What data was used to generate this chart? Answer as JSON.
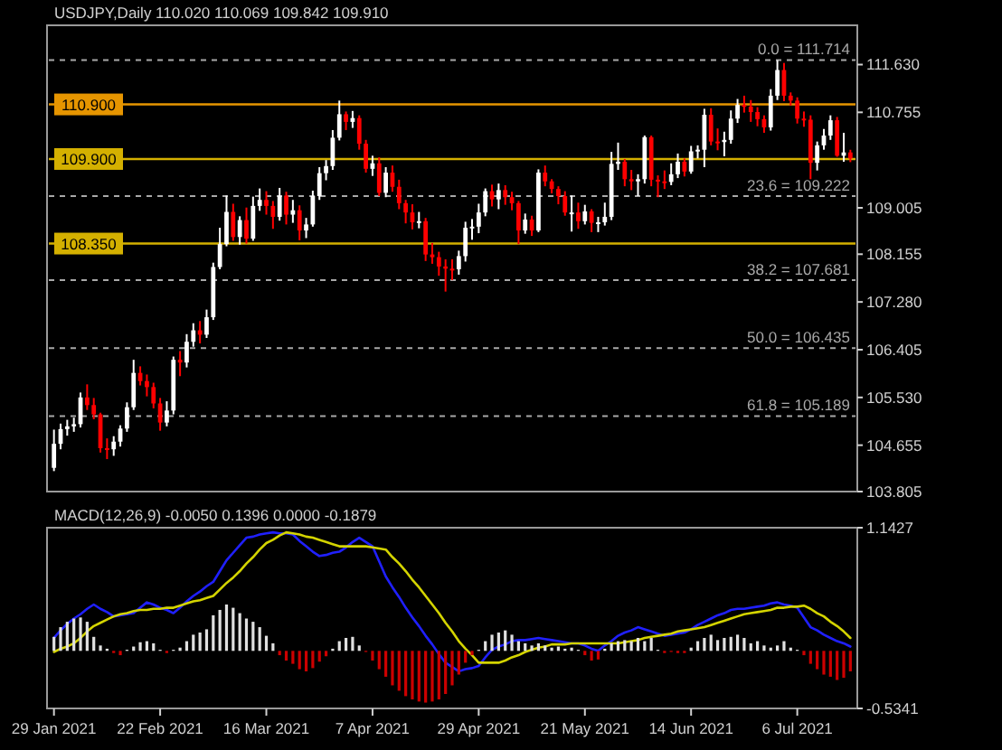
{
  "chart_data": [
    {
      "type": "candlestick",
      "title": "USDJPY,Daily 110.020 110.069 109.842 109.910",
      "tick_labels": "y",
      "ohlc": [
        [
          104.24,
          104.94,
          104.18,
          104.68
        ],
        [
          104.68,
          105.05,
          104.58,
          104.95
        ],
        [
          104.95,
          105.12,
          104.83,
          105.0
        ],
        [
          105.0,
          105.16,
          104.9,
          105.04
        ],
        [
          105.04,
          105.62,
          104.98,
          105.53
        ],
        [
          105.53,
          105.77,
          105.3,
          105.39
        ],
        [
          105.39,
          105.52,
          105.13,
          105.22
        ],
        [
          105.22,
          105.25,
          104.52,
          104.6
        ],
        [
          104.6,
          104.78,
          104.4,
          104.58
        ],
        [
          104.58,
          104.82,
          104.46,
          104.72
        ],
        [
          104.72,
          105.02,
          104.63,
          104.96
        ],
        [
          104.96,
          105.44,
          104.9,
          105.35
        ],
        [
          105.35,
          106.22,
          105.3,
          105.98
        ],
        [
          105.98,
          106.1,
          105.75,
          105.83
        ],
        [
          105.83,
          105.95,
          105.55,
          105.72
        ],
        [
          105.72,
          105.8,
          105.33,
          105.42
        ],
        [
          105.42,
          105.52,
          104.92,
          105.07
        ],
        [
          105.07,
          105.46,
          105.0,
          105.29
        ],
        [
          105.29,
          106.28,
          105.22,
          106.22
        ],
        [
          106.22,
          106.38,
          105.92,
          106.17
        ],
        [
          106.17,
          106.69,
          106.08,
          106.55
        ],
        [
          106.55,
          106.89,
          106.46,
          106.76
        ],
        [
          106.76,
          106.93,
          106.52,
          106.68
        ],
        [
          106.68,
          107.14,
          106.62,
          107.0
        ],
        [
          107.0,
          108.0,
          106.95,
          107.92
        ],
        [
          107.92,
          108.64,
          107.88,
          108.34
        ],
        [
          108.34,
          109.23,
          108.3,
          108.93
        ],
        [
          108.93,
          109.08,
          108.4,
          108.47
        ],
        [
          108.47,
          108.85,
          108.33,
          108.78
        ],
        [
          108.78,
          109.01,
          108.35,
          108.44
        ],
        [
          108.44,
          109.21,
          108.4,
          109.04
        ],
        [
          109.04,
          109.36,
          108.95,
          109.15
        ],
        [
          109.15,
          109.31,
          108.88,
          109.04
        ],
        [
          109.04,
          109.13,
          108.62,
          108.84
        ],
        [
          108.84,
          109.37,
          108.77,
          109.23
        ],
        [
          109.23,
          109.3,
          108.7,
          108.88
        ],
        [
          108.88,
          109.15,
          108.73,
          108.96
        ],
        [
          108.96,
          109.05,
          108.41,
          108.59
        ],
        [
          108.59,
          108.82,
          108.45,
          108.7
        ],
        [
          108.7,
          109.32,
          108.66,
          109.22
        ],
        [
          109.22,
          109.75,
          109.15,
          109.64
        ],
        [
          109.64,
          109.88,
          109.51,
          109.77
        ],
        [
          109.77,
          110.43,
          109.7,
          110.29
        ],
        [
          110.29,
          110.97,
          110.24,
          110.72
        ],
        [
          110.72,
          110.77,
          110.43,
          110.58
        ],
        [
          110.58,
          110.78,
          110.47,
          110.65
        ],
        [
          110.65,
          110.7,
          110.07,
          110.18
        ],
        [
          110.18,
          110.25,
          109.65,
          109.72
        ],
        [
          109.72,
          109.96,
          109.59,
          109.82
        ],
        [
          109.82,
          109.93,
          109.22,
          109.28
        ],
        [
          109.28,
          109.75,
          109.2,
          109.65
        ],
        [
          109.65,
          109.78,
          109.3,
          109.39
        ],
        [
          109.39,
          109.52,
          108.98,
          109.09
        ],
        [
          109.09,
          109.15,
          108.72,
          108.92
        ],
        [
          108.92,
          109.07,
          108.61,
          108.74
        ],
        [
          108.74,
          108.93,
          108.63,
          108.76
        ],
        [
          108.76,
          108.82,
          108.03,
          108.15
        ],
        [
          108.15,
          108.36,
          107.98,
          108.1
        ],
        [
          108.1,
          108.2,
          107.76,
          107.93
        ],
        [
          107.93,
          108.06,
          107.47,
          107.89
        ],
        [
          107.89,
          108.06,
          107.68,
          107.88
        ],
        [
          107.88,
          108.22,
          107.78,
          108.12
        ],
        [
          108.12,
          108.75,
          108.02,
          108.64
        ],
        [
          108.64,
          108.8,
          108.42,
          108.66
        ],
        [
          108.66,
          109.08,
          108.54,
          108.92
        ],
        [
          108.92,
          109.36,
          108.85,
          109.31
        ],
        [
          109.31,
          109.43,
          109.03,
          109.16
        ],
        [
          109.16,
          109.45,
          108.98,
          109.33
        ],
        [
          109.33,
          109.42,
          109.06,
          109.2
        ],
        [
          109.2,
          109.3,
          108.96,
          109.09
        ],
        [
          109.09,
          109.13,
          108.34,
          108.59
        ],
        [
          108.59,
          108.9,
          108.53,
          108.79
        ],
        [
          108.79,
          108.86,
          108.49,
          108.59
        ],
        [
          108.59,
          109.71,
          108.56,
          109.65
        ],
        [
          109.65,
          109.78,
          109.4,
          109.49
        ],
        [
          109.49,
          109.53,
          109.27,
          109.35
        ],
        [
          109.35,
          109.4,
          109.07,
          109.22
        ],
        [
          109.22,
          109.31,
          108.86,
          108.92
        ],
        [
          108.92,
          109.23,
          108.57,
          108.92
        ],
        [
          108.92,
          109.1,
          108.62,
          108.76
        ],
        [
          108.76,
          109.06,
          108.7,
          108.94
        ],
        [
          108.94,
          108.98,
          108.56,
          108.73
        ],
        [
          108.73,
          108.84,
          108.56,
          108.74
        ],
        [
          108.74,
          109.1,
          108.68,
          108.84
        ],
        [
          108.84,
          110.03,
          108.78,
          109.81
        ],
        [
          109.81,
          110.2,
          109.7,
          109.85
        ],
        [
          109.85,
          109.9,
          109.4,
          109.53
        ],
        [
          109.53,
          109.7,
          109.33,
          109.49
        ],
        [
          109.49,
          109.62,
          109.22,
          109.53
        ],
        [
          109.53,
          110.33,
          109.45,
          110.3
        ],
        [
          110.3,
          110.33,
          109.4,
          109.52
        ],
        [
          109.52,
          109.6,
          109.2,
          109.49
        ],
        [
          109.49,
          109.69,
          109.35,
          109.48
        ],
        [
          109.48,
          109.82,
          109.42,
          109.62
        ],
        [
          109.62,
          110.0,
          109.55,
          109.85
        ],
        [
          109.85,
          109.91,
          109.58,
          109.67
        ],
        [
          109.67,
          110.14,
          109.63,
          110.04
        ],
        [
          110.04,
          110.15,
          109.91,
          110.07
        ],
        [
          110.07,
          110.82,
          109.75,
          110.71
        ],
        [
          110.71,
          110.83,
          110.15,
          110.22
        ],
        [
          110.22,
          110.46,
          110.06,
          110.21
        ],
        [
          110.21,
          110.4,
          109.95,
          110.25
        ],
        [
          110.25,
          110.79,
          110.18,
          110.64
        ],
        [
          110.64,
          111.0,
          110.56,
          110.89
        ],
        [
          110.89,
          111.06,
          110.75,
          110.86
        ],
        [
          110.86,
          110.98,
          110.58,
          110.76
        ],
        [
          110.76,
          110.85,
          110.5,
          110.63
        ],
        [
          110.63,
          110.7,
          110.38,
          110.48
        ],
        [
          110.48,
          111.18,
          110.42,
          111.06
        ],
        [
          111.06,
          111.71,
          110.98,
          111.53
        ],
        [
          111.53,
          111.66,
          110.96,
          111.06
        ],
        [
          111.06,
          111.12,
          110.88,
          110.97
        ],
        [
          110.97,
          111.03,
          110.55,
          110.64
        ],
        [
          110.64,
          110.77,
          110.49,
          110.62
        ],
        [
          110.62,
          110.7,
          109.53,
          109.83
        ],
        [
          109.83,
          110.22,
          109.69,
          110.15
        ],
        [
          110.15,
          110.45,
          110.07,
          110.33
        ],
        [
          110.33,
          110.7,
          110.25,
          110.61
        ],
        [
          110.61,
          110.67,
          109.94,
          109.96
        ],
        [
          109.96,
          110.38,
          109.85,
          110.02
        ],
        [
          110.02,
          110.069,
          109.842,
          109.91
        ]
      ],
      "colors": [
        "#ffffff",
        "#ffffff",
        "#ffffff",
        "#ffffff",
        "#ffffff",
        "#ff0000",
        "#ff0000",
        "#ff0000",
        "#ff0000",
        "#ffffff",
        "#ffffff",
        "#ffffff",
        "#ffffff",
        "#ff0000",
        "#ff0000",
        "#ff0000",
        "#ff0000",
        "#ffffff",
        "#ffffff",
        "#ff0000",
        "#ffffff",
        "#ffffff",
        "#ff0000",
        "#ffffff",
        "#ffffff",
        "#ffffff",
        "#ffffff",
        "#ff0000",
        "#ffffff",
        "#ff0000",
        "#ffffff",
        "#ffffff",
        "#ff0000",
        "#ff0000",
        "#ffffff",
        "#ff0000",
        "#ffffff",
        "#ff0000",
        "#ffffff",
        "#ffffff",
        "#ffffff",
        "#ffffff",
        "#ffffff",
        "#ffffff",
        "#ff0000",
        "#ffffff",
        "#ff0000",
        "#ff0000",
        "#ffffff",
        "#ff0000",
        "#ffffff",
        "#ff0000",
        "#ff0000",
        "#ff0000",
        "#ff0000",
        "#ffffff",
        "#ff0000",
        "#ff0000",
        "#ff0000",
        "#ff0000",
        "#ff0000",
        "#ffffff",
        "#ffffff",
        "#ffffff",
        "#ffffff",
        "#ffffff",
        "#ff0000",
        "#ffffff",
        "#ff0000",
        "#ff0000",
        "#ff0000",
        "#ffffff",
        "#ff0000",
        "#ffffff",
        "#ff0000",
        "#ff0000",
        "#ff0000",
        "#ff0000",
        "#ffffff",
        "#ff0000",
        "#ffffff",
        "#ff0000",
        "#ffffff",
        "#ffffff",
        "#ffffff",
        "#ffffff",
        "#ff0000",
        "#ff0000",
        "#ffffff",
        "#ffffff",
        "#ff0000",
        "#ff0000",
        "#ff0000",
        "#ffffff",
        "#ffffff",
        "#ff0000",
        "#ffffff",
        "#ffffff",
        "#ffffff",
        "#ff0000",
        "#ff0000",
        "#ffffff",
        "#ffffff",
        "#ffffff",
        "#ff0000",
        "#ff0000",
        "#ff0000",
        "#ff0000",
        "#ffffff",
        "#ffffff",
        "#ff0000",
        "#ff0000",
        "#ff0000",
        "#ff0000",
        "#ff0000",
        "#ffffff",
        "#ffffff",
        "#ffffff",
        "#ff0000",
        "#ffffff",
        "#ff0000"
      ],
      "ylim": [
        103.805,
        112.35
      ],
      "yticks": [
        {
          "value": 111.63,
          "label": "111.630"
        },
        {
          "value": 110.755,
          "label": "110.755"
        },
        {
          "value": 109.005,
          "label": "109.005"
        },
        {
          "value": 108.155,
          "label": "108.155"
        },
        {
          "value": 107.28,
          "label": "107.280"
        },
        {
          "value": 106.405,
          "label": "106.405"
        },
        {
          "value": 105.53,
          "label": "105.530"
        },
        {
          "value": 104.655,
          "label": "104.655"
        },
        {
          "value": 103.805,
          "label": "103.805"
        }
      ],
      "ref_lines": [
        {
          "axis": "y",
          "value": 111.714,
          "label": "0.0 = 111.714",
          "color": "#a8a8a8",
          "line_style": "dashed"
        },
        {
          "axis": "y",
          "value": 109.222,
          "label": "23.6 = 109.222",
          "color": "#a8a8a8",
          "line_style": "dashed"
        },
        {
          "axis": "y",
          "value": 107.681,
          "label": "38.2 = 107.681",
          "color": "#a8a8a8",
          "line_style": "dashed"
        },
        {
          "axis": "y",
          "value": 106.435,
          "label": "50.0 = 106.435",
          "color": "#a8a8a8",
          "line_style": "dashed"
        },
        {
          "axis": "y",
          "value": 105.189,
          "label": "61.8 = 105.189",
          "color": "#a8a8a8",
          "line_style": "dashed"
        },
        {
          "axis": "y",
          "value": 110.9,
          "label": "110.900",
          "color": "#e69500",
          "line_style": "solid"
        },
        {
          "axis": "y",
          "value": 109.9,
          "label": "109.900",
          "color": "#d4b000",
          "line_style": "solid"
        },
        {
          "axis": "y",
          "value": 108.35,
          "label": "108.350",
          "color": "#d4b000",
          "line_style": "solid"
        }
      ]
    },
    {
      "type": "bar",
      "title": "MACD(12,26,9) -0.0050 0.1396 0.0000 -0.1879",
      "categories": [
        "29 Jan 2021",
        null,
        null,
        null,
        null,
        null,
        null,
        null,
        null,
        null,
        null,
        null,
        null,
        null,
        null,
        null,
        "22 Feb 2021",
        null,
        null,
        null,
        null,
        null,
        null,
        null,
        null,
        null,
        null,
        null,
        null,
        null,
        null,
        null,
        "16 Mar 2021",
        null,
        null,
        null,
        null,
        null,
        null,
        null,
        null,
        null,
        null,
        null,
        null,
        null,
        null,
        null,
        "7 Apr 2021",
        null,
        null,
        null,
        null,
        null,
        null,
        null,
        null,
        null,
        null,
        null,
        null,
        null,
        null,
        null,
        "29 Apr 2021",
        null,
        null,
        null,
        null,
        null,
        null,
        null,
        null,
        null,
        null,
        null,
        null,
        null,
        null,
        null,
        "21 May 2021",
        null,
        null,
        null,
        null,
        null,
        null,
        null,
        null,
        null,
        null,
        null,
        null,
        null,
        null,
        null,
        "14 Jun 2021",
        null,
        null,
        null,
        null,
        null,
        null,
        null,
        null,
        null,
        null,
        null,
        null,
        null,
        null,
        null,
        "6 Jul 2021",
        null,
        null,
        null,
        null,
        null,
        null,
        null,
        null
      ],
      "ylim": [
        -0.5341,
        1.1427
      ],
      "yticks": [
        1.1427,
        -0.5341
      ],
      "series": [
        {
          "type": "bar",
          "values": [
            0.13,
            0.22,
            0.27,
            0.3,
            0.31,
            0.27,
            0.13,
            0.05,
            0.02,
            -0.02,
            -0.04,
            0.01,
            0.04,
            0.08,
            0.09,
            0.07,
            0.01,
            -0.02,
            0.01,
            0.03,
            0.09,
            0.15,
            0.17,
            0.2,
            0.33,
            0.38,
            0.43,
            0.4,
            0.35,
            0.3,
            0.27,
            0.22,
            0.14,
            0.07,
            -0.04,
            -0.09,
            -0.12,
            -0.17,
            -0.19,
            -0.16,
            -0.1,
            -0.05,
            0.02,
            0.09,
            0.12,
            0.13,
            0.05,
            -0.01,
            -0.09,
            -0.17,
            -0.24,
            -0.32,
            -0.37,
            -0.42,
            -0.45,
            -0.47,
            -0.48,
            -0.47,
            -0.45,
            -0.4,
            -0.32,
            -0.22,
            -0.11,
            -0.04,
            0.01,
            0.09,
            0.15,
            0.17,
            0.19,
            0.15,
            0.09,
            0.07,
            0.05,
            0.07,
            0.05,
            0.03,
            0.04,
            0.02,
            0.03,
            0.01,
            -0.04,
            -0.09,
            -0.08,
            0.02,
            0.07,
            0.09,
            0.1,
            0.09,
            0.12,
            0.09,
            0.12,
            0.01,
            -0.02,
            -0.01,
            -0.02,
            -0.02,
            0.03,
            0.09,
            0.12,
            0.15,
            0.1,
            0.12,
            0.13,
            0.15,
            0.12,
            0.07,
            0.09,
            0.05,
            0.03,
            0.05,
            0.09,
            0.03,
            0.01,
            -0.04,
            -0.12,
            -0.17,
            -0.22,
            -0.24,
            -0.27,
            -0.25,
            -0.19
          ],
          "colors": [
            "#e0e0e0",
            "#e0e0e0",
            "#e0e0e0",
            "#e0e0e0",
            "#e0e0e0",
            "#e0e0e0",
            "#e0e0e0",
            "#e0e0e0",
            "#e0e0e0",
            "#cc0000",
            "#cc0000",
            "#e0e0e0",
            "#e0e0e0",
            "#e0e0e0",
            "#e0e0e0",
            "#e0e0e0",
            "#e0e0e0",
            "#cc0000",
            "#e0e0e0",
            "#e0e0e0",
            "#e0e0e0",
            "#e0e0e0",
            "#e0e0e0",
            "#e0e0e0",
            "#e0e0e0",
            "#e0e0e0",
            "#e0e0e0",
            "#e0e0e0",
            "#e0e0e0",
            "#e0e0e0",
            "#e0e0e0",
            "#e0e0e0",
            "#e0e0e0",
            "#e0e0e0",
            "#cc0000",
            "#cc0000",
            "#cc0000",
            "#cc0000",
            "#cc0000",
            "#cc0000",
            "#cc0000",
            "#cc0000",
            "#e0e0e0",
            "#e0e0e0",
            "#e0e0e0",
            "#e0e0e0",
            "#e0e0e0",
            "#cc0000",
            "#cc0000",
            "#cc0000",
            "#cc0000",
            "#cc0000",
            "#cc0000",
            "#cc0000",
            "#cc0000",
            "#cc0000",
            "#cc0000",
            "#cc0000",
            "#cc0000",
            "#cc0000",
            "#cc0000",
            "#cc0000",
            "#cc0000",
            "#cc0000",
            "#e0e0e0",
            "#e0e0e0",
            "#e0e0e0",
            "#e0e0e0",
            "#e0e0e0",
            "#e0e0e0",
            "#e0e0e0",
            "#e0e0e0",
            "#e0e0e0",
            "#e0e0e0",
            "#e0e0e0",
            "#e0e0e0",
            "#e0e0e0",
            "#e0e0e0",
            "#e0e0e0",
            "#e0e0e0",
            "#cc0000",
            "#cc0000",
            "#cc0000",
            "#e0e0e0",
            "#e0e0e0",
            "#e0e0e0",
            "#e0e0e0",
            "#e0e0e0",
            "#e0e0e0",
            "#e0e0e0",
            "#e0e0e0",
            "#e0e0e0",
            "#cc0000",
            "#cc0000",
            "#cc0000",
            "#cc0000",
            "#e0e0e0",
            "#e0e0e0",
            "#e0e0e0",
            "#e0e0e0",
            "#e0e0e0",
            "#e0e0e0",
            "#e0e0e0",
            "#e0e0e0",
            "#e0e0e0",
            "#e0e0e0",
            "#e0e0e0",
            "#e0e0e0",
            "#e0e0e0",
            "#e0e0e0",
            "#e0e0e0",
            "#e0e0e0",
            "#e0e0e0",
            "#cc0000",
            "#cc0000",
            "#cc0000",
            "#cc0000",
            "#cc0000",
            "#cc0000",
            "#cc0000",
            "#cc0000"
          ]
        },
        {
          "type": "line",
          "color": "#2020ff",
          "values": [
            0.12,
            0.19,
            0.25,
            0.3,
            0.34,
            0.39,
            0.43,
            0.39,
            0.36,
            0.32,
            0.33,
            0.34,
            0.35,
            0.4,
            0.45,
            0.43,
            0.4,
            0.38,
            0.35,
            0.4,
            0.46,
            0.51,
            0.55,
            0.6,
            0.64,
            0.74,
            0.84,
            0.91,
            0.98,
            1.05,
            1.06,
            1.08,
            1.09,
            1.1,
            1.09,
            1.09,
            1.08,
            1.02,
            0.97,
            0.92,
            0.88,
            0.89,
            0.91,
            0.92,
            0.96,
            1.01,
            1.05,
            1.01,
            0.97,
            0.83,
            0.69,
            0.59,
            0.5,
            0.4,
            0.31,
            0.23,
            0.14,
            0.06,
            -0.03,
            -0.11,
            -0.15,
            -0.19,
            -0.17,
            -0.16,
            -0.14,
            -0.06,
            0.01,
            0.04,
            0.06,
            0.09,
            0.1,
            0.1,
            0.11,
            0.12,
            0.11,
            0.1,
            0.09,
            0.08,
            0.07,
            0.07,
            0.05,
            0.02,
            0.0,
            0.05,
            0.09,
            0.14,
            0.17,
            0.19,
            0.22,
            0.2,
            0.18,
            0.16,
            0.14,
            0.15,
            0.16,
            0.17,
            0.2,
            0.24,
            0.27,
            0.3,
            0.33,
            0.35,
            0.38,
            0.39,
            0.39,
            0.4,
            0.41,
            0.42,
            0.44,
            0.45,
            0.43,
            0.42,
            0.4,
            0.31,
            0.22,
            0.19,
            0.15,
            0.12,
            0.09,
            0.07,
            0.04
          ]
        },
        {
          "type": "line",
          "color": "#d4d400",
          "values": [
            -0.01,
            0.02,
            0.04,
            0.07,
            0.12,
            0.18,
            0.23,
            0.26,
            0.29,
            0.32,
            0.34,
            0.35,
            0.37,
            0.38,
            0.38,
            0.39,
            0.39,
            0.4,
            0.4,
            0.42,
            0.44,
            0.46,
            0.47,
            0.49,
            0.51,
            0.57,
            0.63,
            0.68,
            0.74,
            0.81,
            0.87,
            0.94,
            1.0,
            1.03,
            1.07,
            1.1,
            1.09,
            1.08,
            1.06,
            1.05,
            1.03,
            1.01,
            0.99,
            0.97,
            0.97,
            0.97,
            0.97,
            0.97,
            0.96,
            0.95,
            0.94,
            0.87,
            0.81,
            0.74,
            0.66,
            0.59,
            0.51,
            0.43,
            0.35,
            0.26,
            0.18,
            0.09,
            0.02,
            -0.04,
            -0.11,
            -0.11,
            -0.11,
            -0.11,
            -0.09,
            -0.06,
            -0.04,
            -0.01,
            0.01,
            0.03,
            0.04,
            0.06,
            0.06,
            0.06,
            0.07,
            0.07,
            0.07,
            0.07,
            0.07,
            0.07,
            0.07,
            0.07,
            0.08,
            0.09,
            0.1,
            0.12,
            0.13,
            0.14,
            0.15,
            0.16,
            0.18,
            0.19,
            0.2,
            0.21,
            0.22,
            0.24,
            0.26,
            0.28,
            0.3,
            0.32,
            0.34,
            0.35,
            0.36,
            0.37,
            0.38,
            0.4,
            0.4,
            0.41,
            0.41,
            0.42,
            0.39,
            0.35,
            0.32,
            0.27,
            0.23,
            0.18,
            0.12
          ]
        }
      ]
    }
  ]
}
